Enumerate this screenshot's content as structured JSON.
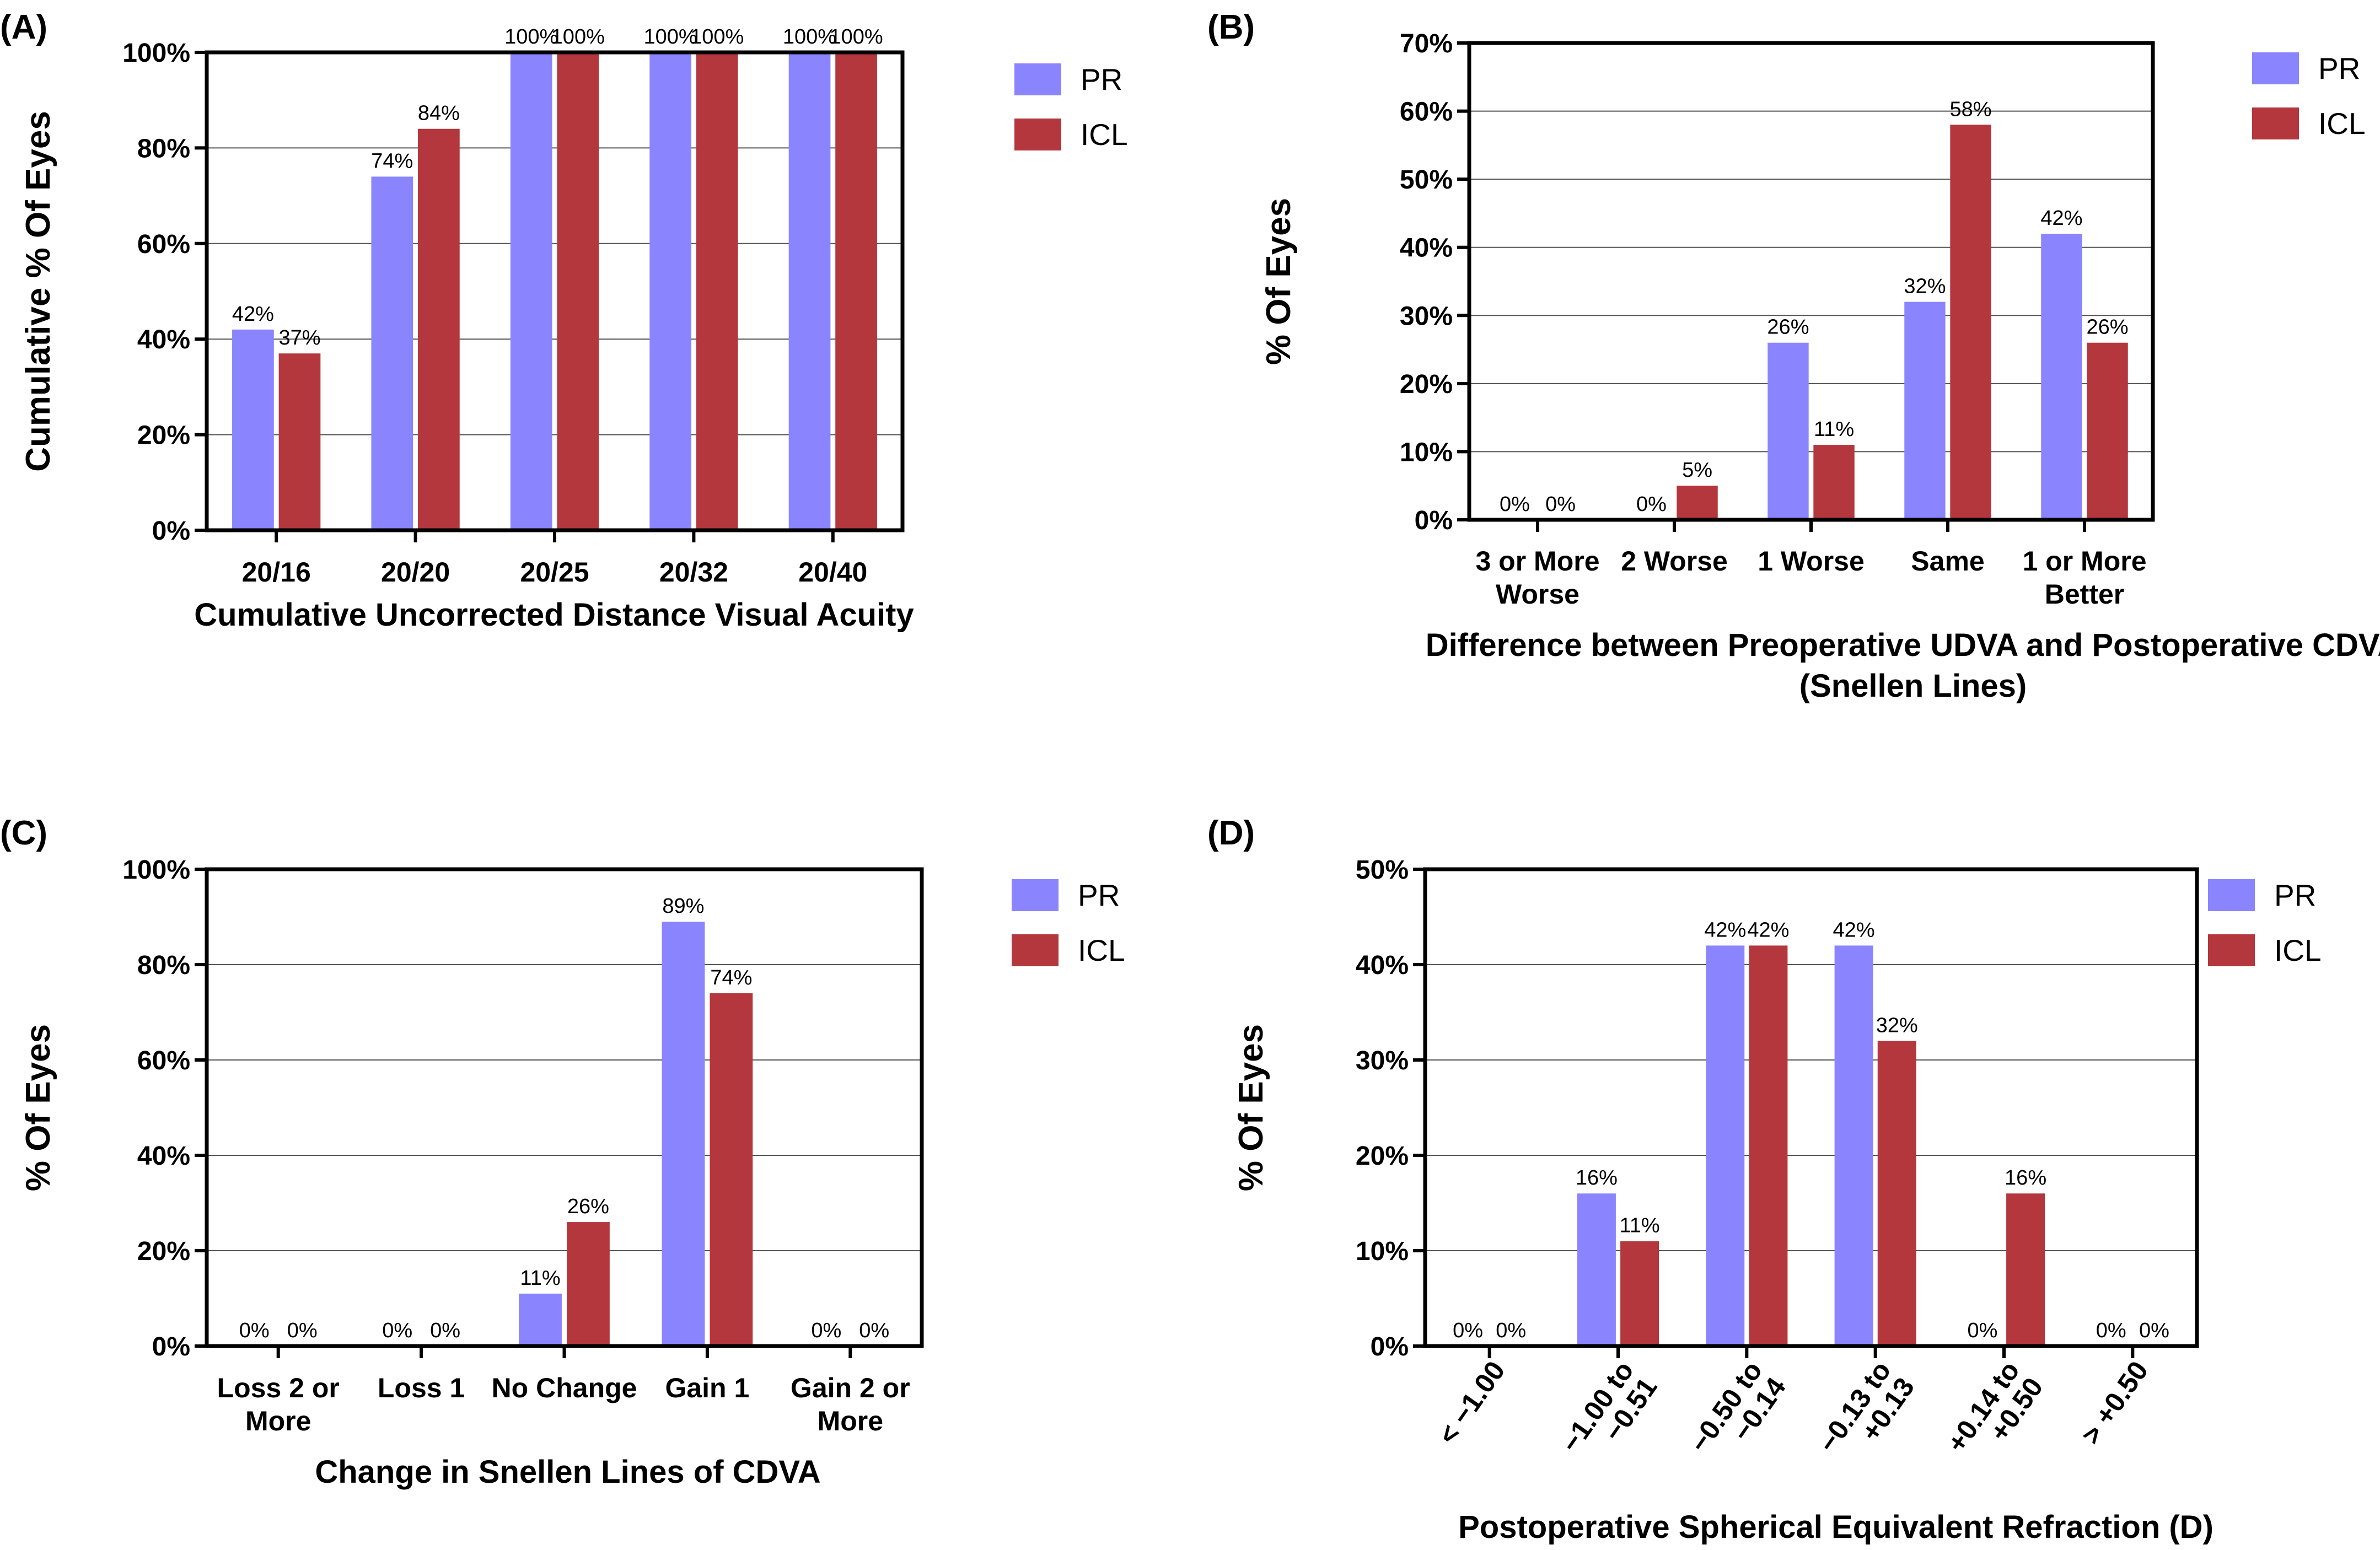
{
  "colors": {
    "pr": "#8A85FF",
    "icl": "#B3373C",
    "grid": "#555555",
    "axis": "#000000"
  },
  "legend": {
    "pr": "PR",
    "icl": "ICL"
  },
  "chart_data": [
    {
      "panel": "(A)",
      "type": "bar",
      "categories": [
        "20/16",
        "20/20",
        "20/25",
        "20/32",
        "20/40"
      ],
      "series": [
        {
          "name": "PR",
          "values": [
            42,
            74,
            100,
            100,
            100
          ],
          "labels": [
            "42%",
            "74%",
            "100%",
            "100%",
            "100%"
          ]
        },
        {
          "name": "ICL",
          "values": [
            37,
            84,
            100,
            100,
            100
          ],
          "labels": [
            "37%",
            "84%",
            "100%",
            "100%",
            "100%"
          ]
        }
      ],
      "ylim": [
        0,
        100
      ],
      "yticks": [
        "0%",
        "20%",
        "40%",
        "60%",
        "80%",
        "100%"
      ],
      "ylabel": "Cumulative % Of Eyes",
      "xlabel": [
        "Cumulative Uncorrected Distance Visual Acuity"
      ],
      "legend_position": "top-right"
    },
    {
      "panel": "(B)",
      "type": "bar",
      "categories": [
        [
          "3 or More",
          "Worse"
        ],
        [
          "2 Worse"
        ],
        [
          "1 Worse"
        ],
        [
          "Same"
        ],
        [
          "1 or More",
          "Better"
        ]
      ],
      "series": [
        {
          "name": "PR",
          "values": [
            0,
            0,
            26,
            32,
            42
          ],
          "labels": [
            "0%",
            "0%",
            "26%",
            "32%",
            "42%"
          ]
        },
        {
          "name": "ICL",
          "values": [
            0,
            5,
            11,
            58,
            26
          ],
          "labels": [
            "0%",
            "5%",
            "11%",
            "58%",
            "26%"
          ]
        }
      ],
      "ylim": [
        0,
        70
      ],
      "yticks": [
        "0%",
        "10%",
        "20%",
        "30%",
        "40%",
        "50%",
        "60%",
        "70%"
      ],
      "ylabel": "% Of Eyes",
      "xlabel": [
        "Difference between Preoperative UDVA and Postoperative CDVA",
        "(Snellen Lines)"
      ],
      "legend_position": "top-right"
    },
    {
      "panel": "(C)",
      "type": "bar",
      "categories": [
        [
          "Loss 2 or",
          "More"
        ],
        [
          "Loss 1"
        ],
        [
          "No Change"
        ],
        [
          "Gain 1"
        ],
        [
          "Gain 2 or",
          "More"
        ]
      ],
      "series": [
        {
          "name": "PR",
          "values": [
            0,
            0,
            11,
            89,
            0
          ],
          "labels": [
            "0%",
            "0%",
            "11%",
            "89%",
            "0%"
          ]
        },
        {
          "name": "ICL",
          "values": [
            0,
            0,
            26,
            74,
            0
          ],
          "labels": [
            "0%",
            "0%",
            "26%",
            "74%",
            "0%"
          ]
        }
      ],
      "ylim": [
        0,
        100
      ],
      "yticks": [
        "0%",
        "20%",
        "40%",
        "60%",
        "80%",
        "100%"
      ],
      "ylabel": "% Of Eyes",
      "xlabel": [
        "Change in Snellen Lines of CDVA"
      ],
      "legend_position": "top-right"
    },
    {
      "panel": "(D)",
      "type": "bar",
      "categories": [
        [
          "< −1.00"
        ],
        [
          "−1.00 to",
          "−0.51"
        ],
        [
          "−0.50 to",
          "−0.14"
        ],
        [
          "−0.13 to",
          "+0.13"
        ],
        [
          "+0.14 to",
          "+0.50"
        ],
        [
          "> +0.50"
        ]
      ],
      "series": [
        {
          "name": "PR",
          "values": [
            0,
            16,
            42,
            42,
            0,
            0
          ],
          "labels": [
            "0%",
            "16%",
            "42%",
            "42%",
            "0%",
            "0%"
          ]
        },
        {
          "name": "ICL",
          "values": [
            0,
            11,
            42,
            32,
            16,
            0
          ],
          "labels": [
            "0%",
            "11%",
            "42%",
            "32%",
            "16%",
            "0%"
          ]
        }
      ],
      "ylim": [
        0,
        50
      ],
      "yticks": [
        "0%",
        "10%",
        "20%",
        "30%",
        "40%",
        "50%"
      ],
      "ylabel": "% Of Eyes",
      "xlabel": [
        "Postoperative Spherical Equivalent Refraction (D)"
      ],
      "xtick_rotation_deg": -55,
      "legend_position": "top-right"
    }
  ]
}
